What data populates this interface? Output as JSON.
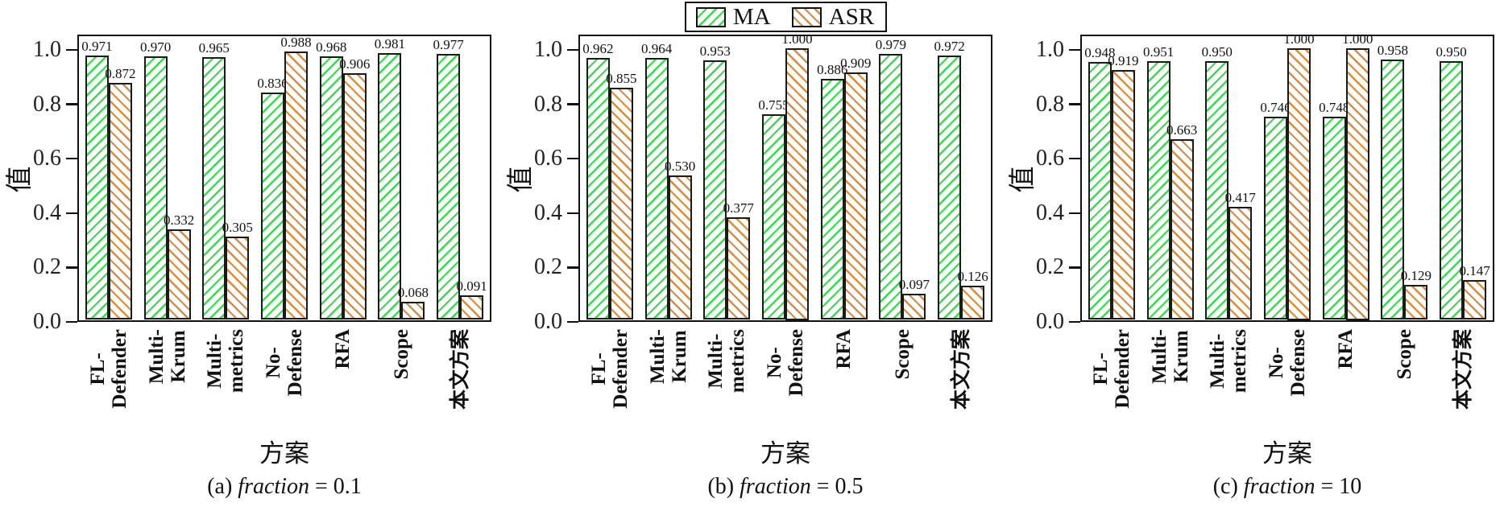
{
  "legend": {
    "items": [
      {
        "label": "MA",
        "color": "#35dd4d",
        "hatch": "/"
      },
      {
        "label": "ASR",
        "color": "#dd8a3a",
        "hatch": "\\"
      }
    ]
  },
  "axis": {
    "y_label": "值",
    "x_label": "方案",
    "y_ticks": [
      "1.0",
      "0.8",
      "0.6",
      "0.4",
      "0.2",
      "0.0"
    ],
    "y_min": 0.0,
    "y_max": 1.0,
    "grid": false
  },
  "chart_data": [
    {
      "type": "bar",
      "caption": {
        "index": "(a)",
        "italic": "fraction",
        "rest": "= 0.1"
      },
      "categories": [
        [
          "FL-",
          "Defender"
        ],
        [
          "Multi-",
          "Krum"
        ],
        [
          "Multi-",
          "metrics"
        ],
        [
          "No-",
          "Defense"
        ],
        [
          "RFA"
        ],
        [
          "Scope"
        ],
        [
          "本文方案"
        ]
      ],
      "series": [
        {
          "name": "MA",
          "values": [
            0.971,
            0.97,
            0.965,
            0.836,
            0.968,
            0.981,
            0.977
          ]
        },
        {
          "name": "ASR",
          "values": [
            0.872,
            0.332,
            0.305,
            0.988,
            0.906,
            0.068,
            0.091
          ]
        }
      ],
      "ylim": [
        0,
        1.05
      ]
    },
    {
      "type": "bar",
      "caption": {
        "index": "(b)",
        "italic": "fraction",
        "rest": "= 0.5"
      },
      "categories": [
        [
          "FL-",
          "Defender"
        ],
        [
          "Multi-",
          "Krum"
        ],
        [
          "Multi-",
          "metrics"
        ],
        [
          "No-",
          "Defense"
        ],
        [
          "RFA"
        ],
        [
          "Scope"
        ],
        [
          "本文方案"
        ]
      ],
      "series": [
        {
          "name": "MA",
          "values": [
            0.962,
            0.964,
            0.953,
            0.755,
            0.886,
            0.979,
            0.972
          ]
        },
        {
          "name": "ASR",
          "values": [
            0.855,
            0.53,
            0.377,
            1.0,
            0.909,
            0.097,
            0.126
          ]
        }
      ],
      "ylim": [
        0,
        1.05
      ]
    },
    {
      "type": "bar",
      "caption": {
        "index": "(c)",
        "italic": "fraction",
        "rest": "= 10"
      },
      "categories": [
        [
          "FL-",
          "Defender"
        ],
        [
          "Multi-",
          "Krum"
        ],
        [
          "Multi-",
          "metrics"
        ],
        [
          "No-",
          "Defense"
        ],
        [
          "RFA"
        ],
        [
          "Scope"
        ],
        [
          "本文方案"
        ]
      ],
      "series": [
        {
          "name": "MA",
          "values": [
            0.948,
            0.951,
            0.95,
            0.746,
            0.748,
            0.958,
            0.95
          ]
        },
        {
          "name": "ASR",
          "values": [
            0.919,
            0.663,
            0.417,
            1.0,
            1.0,
            0.129,
            0.147
          ]
        }
      ],
      "ylim": [
        0,
        1.05
      ]
    }
  ]
}
